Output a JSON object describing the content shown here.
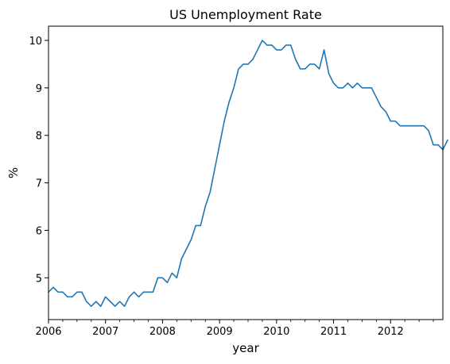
{
  "chart_data": {
    "type": "line",
    "title": "US Unemployment Rate",
    "xlabel": "year",
    "ylabel": "%",
    "x_start": "2006-01",
    "x_end": "2012-12",
    "xlim": [
      "2006-01",
      "2012-12"
    ],
    "ylim": [
      4.12,
      10.3
    ],
    "x_ticks": [
      {
        "x": "2006-01",
        "label": "2006"
      },
      {
        "x": "2007-01",
        "label": "2007"
      },
      {
        "x": "2008-01",
        "label": "2008"
      },
      {
        "x": "2009-01",
        "label": "2009"
      },
      {
        "x": "2010-01",
        "label": "2010"
      },
      {
        "x": "2011-01",
        "label": "2011"
      },
      {
        "x": "2012-01",
        "label": "2012"
      }
    ],
    "y_ticks": [
      {
        "y": 5,
        "label": "5"
      },
      {
        "y": 6,
        "label": "6"
      },
      {
        "y": 7,
        "label": "7"
      },
      {
        "y": 8,
        "label": "8"
      },
      {
        "y": 9,
        "label": "9"
      },
      {
        "y": 10,
        "label": "10"
      }
    ],
    "grid": false,
    "legend": "none",
    "series": [
      {
        "color": "#1f77b4",
        "values": [
          4.7,
          4.8,
          4.7,
          4.7,
          4.6,
          4.6,
          4.7,
          4.7,
          4.5,
          4.4,
          4.5,
          4.4,
          4.6,
          4.5,
          4.4,
          4.5,
          4.4,
          4.6,
          4.7,
          4.6,
          4.7,
          4.7,
          4.7,
          5.0,
          5.0,
          4.9,
          5.1,
          5.0,
          5.4,
          5.6,
          5.8,
          6.1,
          6.1,
          6.5,
          6.8,
          7.3,
          7.8,
          8.3,
          8.7,
          9.0,
          9.4,
          9.5,
          9.5,
          9.6,
          9.8,
          10.0,
          9.9,
          9.9,
          9.8,
          9.8,
          9.9,
          9.9,
          9.6,
          9.4,
          9.4,
          9.5,
          9.5,
          9.4,
          9.8,
          9.3,
          9.1,
          9.0,
          9.0,
          9.1,
          9.0,
          9.1,
          9.0,
          9.0,
          9.0,
          8.8,
          8.6,
          8.5,
          8.3,
          8.3,
          8.2,
          8.2,
          8.2,
          8.2,
          8.2,
          8.2,
          8.1,
          7.8,
          7.8,
          7.7,
          7.9
        ]
      }
    ]
  }
}
